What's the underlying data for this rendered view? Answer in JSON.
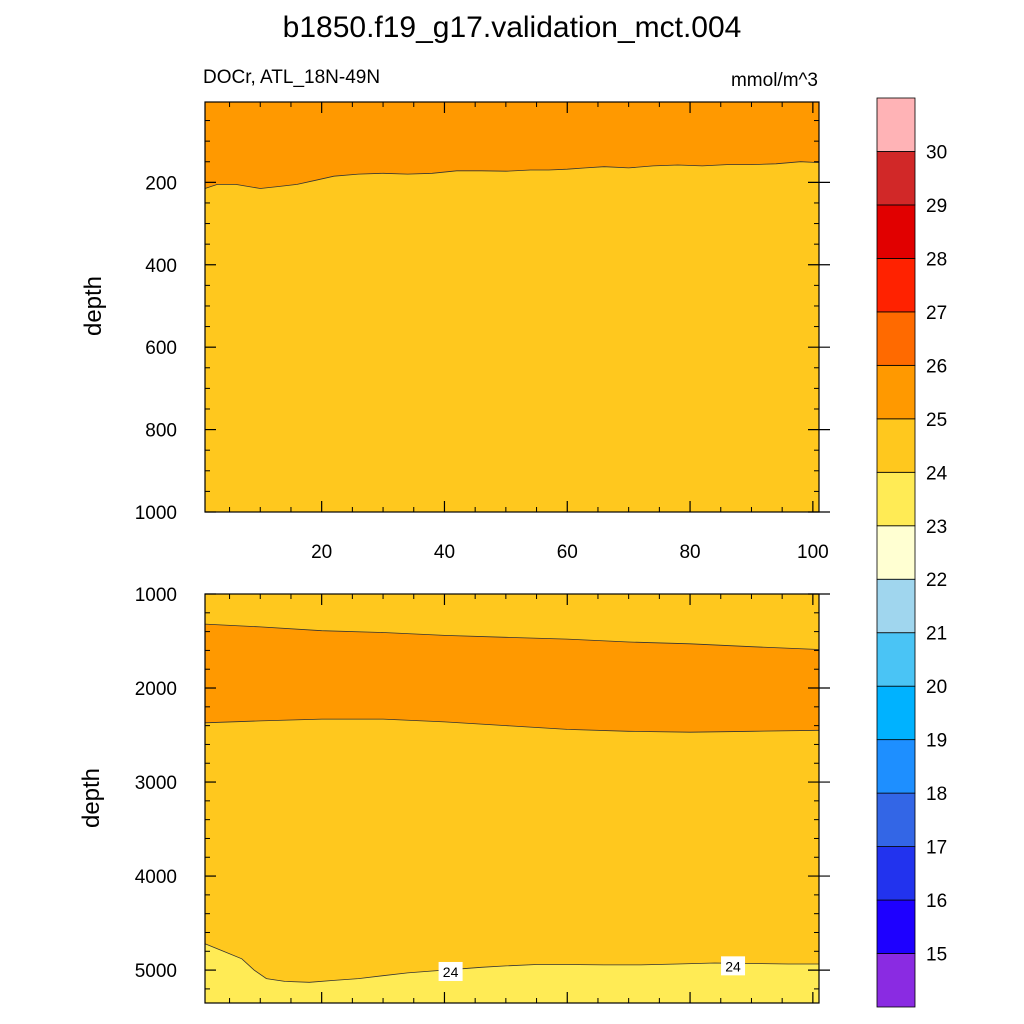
{
  "title": "b1850.f19_g17.validation_mct.004",
  "subtitle_left": "DOCr, ATL_18N-49N",
  "units": "mmol/m^3",
  "colorbar": {
    "labels": [
      "15",
      "16",
      "17",
      "18",
      "19",
      "20",
      "21",
      "22",
      "23",
      "24",
      "25",
      "26",
      "27",
      "28",
      "29",
      "30"
    ],
    "colors": [
      "#8a2be2",
      "#1e00ff",
      "#2233ee",
      "#3366e6",
      "#1e8fff",
      "#00b2ff",
      "#4ac4f5",
      "#a0d6ee",
      "#ffffd2",
      "#ffeb55",
      "#ffc81e",
      "#ff9900",
      "#ff6a00",
      "#ff2200",
      "#e10000",
      "#d12828",
      "#ffb3b6"
    ]
  },
  "chart_data": [
    {
      "type": "contour",
      "panel": "upper",
      "xlabel": "",
      "ylabel": "depth",
      "xlim": [
        1,
        101
      ],
      "ylim": [
        1000,
        5
      ],
      "x_ticks": [
        "20",
        "40",
        "60",
        "80",
        "100"
      ],
      "y_ticks": [
        "200",
        "400",
        "600",
        "800",
        "1000"
      ],
      "x_tick_values": [
        20,
        40,
        60,
        80,
        100
      ],
      "y_tick_values": [
        200,
        400,
        600,
        800,
        1000
      ],
      "regions": [
        {
          "range": "24-25",
          "color": "#ffc81e",
          "fill": "below",
          "boundary": [
            [
              1,
              215
            ],
            [
              3,
              205
            ],
            [
              6,
              205
            ],
            [
              10,
              215
            ],
            [
              13,
              210
            ],
            [
              16,
              205
            ],
            [
              19,
              195
            ],
            [
              22,
              185
            ],
            [
              26,
              180
            ],
            [
              30,
              178
            ],
            [
              34,
              180
            ],
            [
              38,
              178
            ],
            [
              42,
              172
            ],
            [
              46,
              172
            ],
            [
              50,
              173
            ],
            [
              54,
              170
            ],
            [
              57,
              170
            ],
            [
              60,
              168
            ],
            [
              63,
              165
            ],
            [
              66,
              162
            ],
            [
              70,
              165
            ],
            [
              74,
              160
            ],
            [
              78,
              158
            ],
            [
              82,
              160
            ],
            [
              86,
              157
            ],
            [
              90,
              157
            ],
            [
              94,
              155
            ],
            [
              98,
              150
            ],
            [
              101,
              152
            ]
          ]
        },
        {
          "range": "25-26",
          "color": "#ff9900",
          "fill": "above",
          "boundary": "same"
        }
      ]
    },
    {
      "type": "contour",
      "panel": "lower",
      "xlabel": "",
      "ylabel": "depth",
      "xlim": [
        1,
        101
      ],
      "ylim": [
        5350,
        1000
      ],
      "y_ticks": [
        "1000",
        "2000",
        "3000",
        "4000",
        "5000"
      ],
      "y_tick_values": [
        1000,
        2000,
        3000,
        4000,
        5000
      ],
      "contour_labels": [
        {
          "text": "24",
          "x": 41,
          "y": 5020
        },
        {
          "text": "24",
          "x": 87,
          "y": 4960
        }
      ],
      "regions": [
        {
          "range": "24-25",
          "color": "#ffc81e",
          "fill": "top",
          "upper_boundary": [
            [
              1,
              1320
            ],
            [
              10,
              1350
            ],
            [
              20,
              1390
            ],
            [
              30,
              1410
            ],
            [
              40,
              1440
            ],
            [
              50,
              1460
            ],
            [
              60,
              1480
            ],
            [
              70,
              1510
            ],
            [
              80,
              1530
            ],
            [
              90,
              1560
            ],
            [
              101,
              1590
            ]
          ]
        },
        {
          "range": "25-26",
          "color": "#ff9900",
          "fill": "band",
          "upper_boundary": [
            [
              1,
              1320
            ],
            [
              10,
              1350
            ],
            [
              20,
              1390
            ],
            [
              30,
              1410
            ],
            [
              40,
              1440
            ],
            [
              50,
              1460
            ],
            [
              60,
              1480
            ],
            [
              70,
              1510
            ],
            [
              80,
              1530
            ],
            [
              90,
              1560
            ],
            [
              101,
              1590
            ]
          ],
          "lower_boundary": [
            [
              1,
              2370
            ],
            [
              10,
              2350
            ],
            [
              20,
              2330
            ],
            [
              30,
              2330
            ],
            [
              40,
              2360
            ],
            [
              50,
              2400
            ],
            [
              60,
              2440
            ],
            [
              70,
              2460
            ],
            [
              80,
              2470
            ],
            [
              90,
              2460
            ],
            [
              101,
              2450
            ]
          ]
        },
        {
          "range": "24-25",
          "color": "#ffc81e",
          "fill": "band",
          "upper_boundary": [
            [
              1,
              2370
            ],
            [
              10,
              2350
            ],
            [
              20,
              2330
            ],
            [
              30,
              2330
            ],
            [
              40,
              2360
            ],
            [
              50,
              2400
            ],
            [
              60,
              2440
            ],
            [
              70,
              2460
            ],
            [
              80,
              2470
            ],
            [
              90,
              2460
            ],
            [
              101,
              2450
            ]
          ],
          "lower_boundary": [
            [
              1,
              4720
            ],
            [
              4,
              4800
            ],
            [
              7,
              4880
            ],
            [
              9,
              5000
            ],
            [
              11,
              5090
            ],
            [
              14,
              5120
            ],
            [
              18,
              5130
            ],
            [
              22,
              5110
            ],
            [
              26,
              5090
            ],
            [
              30,
              5060
            ],
            [
              34,
              5030
            ],
            [
              38,
              5010
            ],
            [
              42,
              4990
            ],
            [
              46,
              4970
            ],
            [
              50,
              4955
            ],
            [
              55,
              4940
            ],
            [
              60,
              4940
            ],
            [
              66,
              4945
            ],
            [
              72,
              4945
            ],
            [
              78,
              4935
            ],
            [
              84,
              4925
            ],
            [
              90,
              4930
            ],
            [
              96,
              4935
            ],
            [
              101,
              4935
            ]
          ]
        },
        {
          "range": "23-24",
          "color": "#ffeb55",
          "fill": "bottom",
          "upper_boundary": [
            [
              1,
              4720
            ],
            [
              4,
              4800
            ],
            [
              7,
              4880
            ],
            [
              9,
              5000
            ],
            [
              11,
              5090
            ],
            [
              14,
              5120
            ],
            [
              18,
              5130
            ],
            [
              22,
              5110
            ],
            [
              26,
              5090
            ],
            [
              30,
              5060
            ],
            [
              34,
              5030
            ],
            [
              38,
              5010
            ],
            [
              42,
              4990
            ],
            [
              46,
              4970
            ],
            [
              50,
              4955
            ],
            [
              55,
              4940
            ],
            [
              60,
              4940
            ],
            [
              66,
              4945
            ],
            [
              72,
              4945
            ],
            [
              78,
              4935
            ],
            [
              84,
              4925
            ],
            [
              90,
              4930
            ],
            [
              96,
              4935
            ],
            [
              101,
              4935
            ]
          ]
        }
      ]
    }
  ]
}
